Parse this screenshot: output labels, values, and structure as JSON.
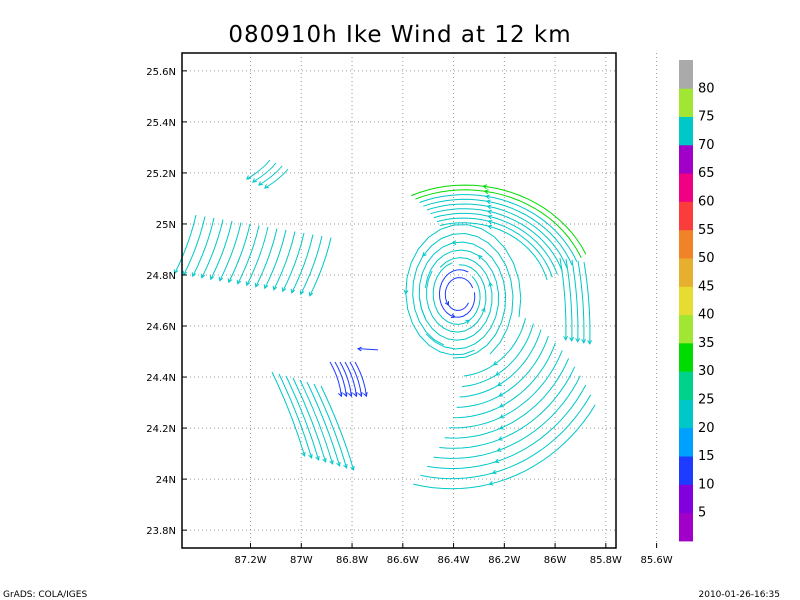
{
  "chart_data": {
    "type": "vector-field",
    "title": "080910h Ike Wind at 12 km",
    "xlabel": "",
    "ylabel": "",
    "x_ticks": [
      "87.2W",
      "87W",
      "86.8W",
      "86.6W",
      "86.4W",
      "86.2W",
      "86W",
      "85.8W",
      "85.6W"
    ],
    "x_tick_values": [
      -87.2,
      -87.0,
      -86.8,
      -86.6,
      -86.4,
      -86.2,
      -86.0,
      -85.8,
      -85.6
    ],
    "y_ticks": [
      "23.8N",
      "24N",
      "24.2N",
      "24.4N",
      "24.6N",
      "24.8N",
      "25N",
      "25.2N",
      "25.4N",
      "25.6N"
    ],
    "y_tick_values": [
      23.8,
      24.0,
      24.2,
      24.4,
      24.6,
      24.8,
      25.0,
      25.2,
      25.4,
      25.6
    ],
    "xlim": [
      -87.47,
      -85.76
    ],
    "ylim": [
      23.73,
      25.67
    ],
    "grid": true,
    "vortex_center": {
      "lon": -86.38,
      "lat": 24.72
    },
    "colorbar": {
      "labels": [
        "5",
        "10",
        "15",
        "20",
        "25",
        "30",
        "35",
        "40",
        "45",
        "50",
        "55",
        "60",
        "65",
        "70",
        "75",
        "80"
      ],
      "colors": [
        "#a000c8",
        "#8200dc",
        "#1e3cff",
        "#00a0ff",
        "#00c8c8",
        "#00d28c",
        "#00dc00",
        "#a0e632",
        "#e6dc32",
        "#e6af2d",
        "#f08228",
        "#fa3c3c",
        "#f00082",
        "#a000c8",
        "#00c8c8",
        "#a0e632",
        "#aaaaaa"
      ]
    },
    "streamline_colors": {
      "slow": "#1e3cff",
      "medium": "#00c8c8",
      "fast": "#00dc00"
    }
  },
  "footer": {
    "left": "GrADS: COLA/IGES",
    "right": "2010-01-26-16:35"
  }
}
